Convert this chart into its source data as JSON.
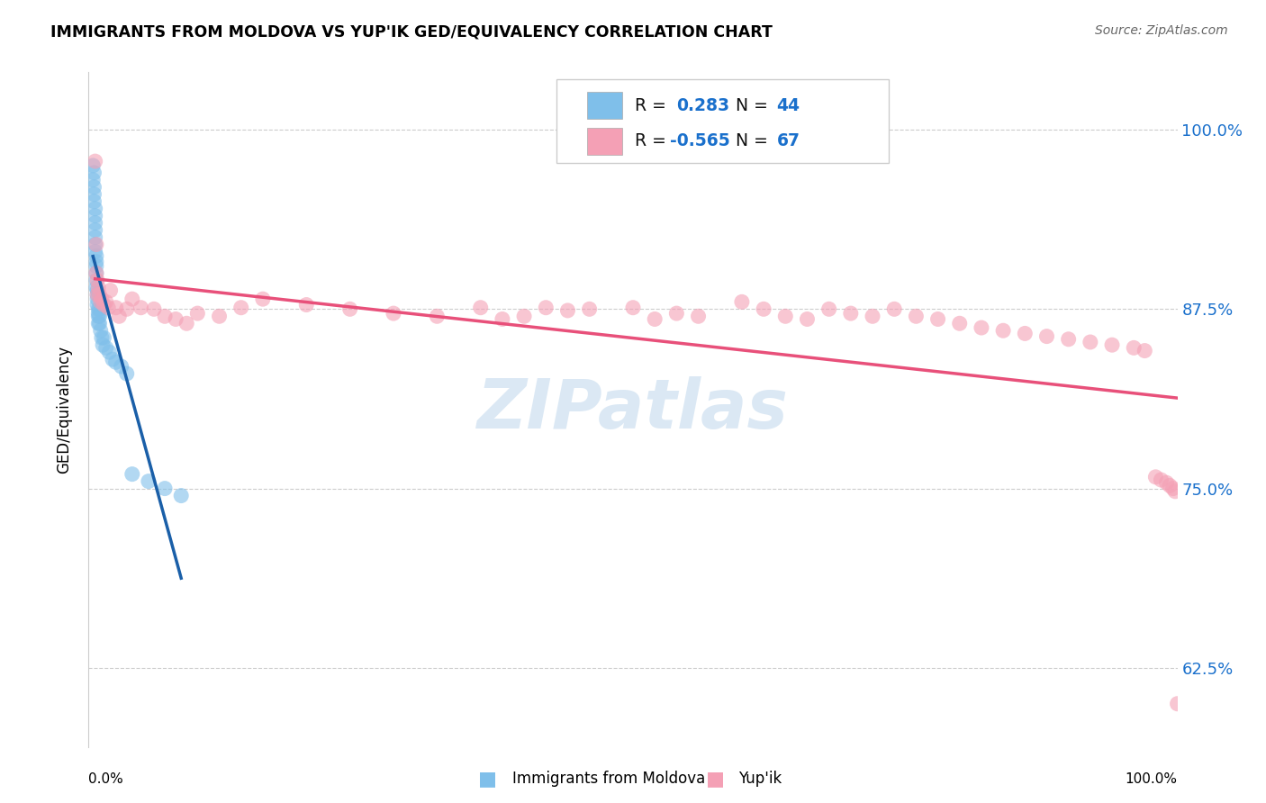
{
  "title": "IMMIGRANTS FROM MOLDOVA VS YUP'IK GED/EQUIVALENCY CORRELATION CHART",
  "source": "Source: ZipAtlas.com",
  "ylabel": "GED/Equivalency",
  "blue_color": "#7fbfea",
  "pink_color": "#f4a0b5",
  "blue_line_color": "#1a5fa8",
  "pink_line_color": "#e8507a",
  "watermark_color": "#ccdff0",
  "blue_r": 0.283,
  "blue_n": 44,
  "pink_r": -0.565,
  "pink_n": 67,
  "xlim": [
    0.0,
    1.0
  ],
  "ylim": [
    0.57,
    1.04
  ],
  "yticks": [
    0.625,
    0.75,
    0.875,
    1.0
  ],
  "ytick_labels": [
    "62.5%",
    "75.0%",
    "87.5%",
    "100.0%"
  ],
  "blue_x": [
    0.004,
    0.004,
    0.005,
    0.005,
    0.005,
    0.005,
    0.006,
    0.006,
    0.006,
    0.006,
    0.006,
    0.006,
    0.006,
    0.007,
    0.007,
    0.007,
    0.007,
    0.007,
    0.007,
    0.008,
    0.008,
    0.008,
    0.008,
    0.009,
    0.009,
    0.009,
    0.009,
    0.01,
    0.01,
    0.01,
    0.011,
    0.012,
    0.013,
    0.014,
    0.016,
    0.019,
    0.022,
    0.025,
    0.03,
    0.035,
    0.04,
    0.055,
    0.07,
    0.085
  ],
  "blue_y": [
    0.975,
    0.965,
    0.96,
    0.955,
    0.95,
    0.97,
    0.945,
    0.94,
    0.935,
    0.93,
    0.925,
    0.92,
    0.915,
    0.912,
    0.908,
    0.905,
    0.9,
    0.895,
    0.89,
    0.888,
    0.885,
    0.882,
    0.878,
    0.875,
    0.872,
    0.87,
    0.865,
    0.875,
    0.87,
    0.865,
    0.86,
    0.855,
    0.85,
    0.855,
    0.848,
    0.845,
    0.84,
    0.838,
    0.835,
    0.83,
    0.76,
    0.755,
    0.75,
    0.745
  ],
  "pink_x": [
    0.006,
    0.007,
    0.007,
    0.008,
    0.008,
    0.009,
    0.01,
    0.011,
    0.012,
    0.014,
    0.016,
    0.018,
    0.02,
    0.025,
    0.028,
    0.035,
    0.04,
    0.048,
    0.06,
    0.07,
    0.08,
    0.09,
    0.1,
    0.12,
    0.14,
    0.16,
    0.2,
    0.24,
    0.28,
    0.32,
    0.36,
    0.38,
    0.4,
    0.42,
    0.44,
    0.46,
    0.5,
    0.52,
    0.54,
    0.56,
    0.6,
    0.62,
    0.64,
    0.66,
    0.68,
    0.7,
    0.72,
    0.74,
    0.76,
    0.78,
    0.8,
    0.82,
    0.84,
    0.86,
    0.88,
    0.9,
    0.92,
    0.94,
    0.96,
    0.97,
    0.98,
    0.985,
    0.99,
    0.993,
    0.996,
    0.998,
    1.0
  ],
  "pink_y": [
    0.978,
    0.92,
    0.9,
    0.895,
    0.885,
    0.89,
    0.885,
    0.88,
    0.882,
    0.878,
    0.88,
    0.876,
    0.888,
    0.876,
    0.87,
    0.875,
    0.882,
    0.876,
    0.875,
    0.87,
    0.868,
    0.865,
    0.872,
    0.87,
    0.876,
    0.882,
    0.878,
    0.875,
    0.872,
    0.87,
    0.876,
    0.868,
    0.87,
    0.876,
    0.874,
    0.875,
    0.876,
    0.868,
    0.872,
    0.87,
    0.88,
    0.875,
    0.87,
    0.868,
    0.875,
    0.872,
    0.87,
    0.875,
    0.87,
    0.868,
    0.865,
    0.862,
    0.86,
    0.858,
    0.856,
    0.854,
    0.852,
    0.85,
    0.848,
    0.846,
    0.758,
    0.756,
    0.754,
    0.752,
    0.75,
    0.748,
    0.6
  ]
}
